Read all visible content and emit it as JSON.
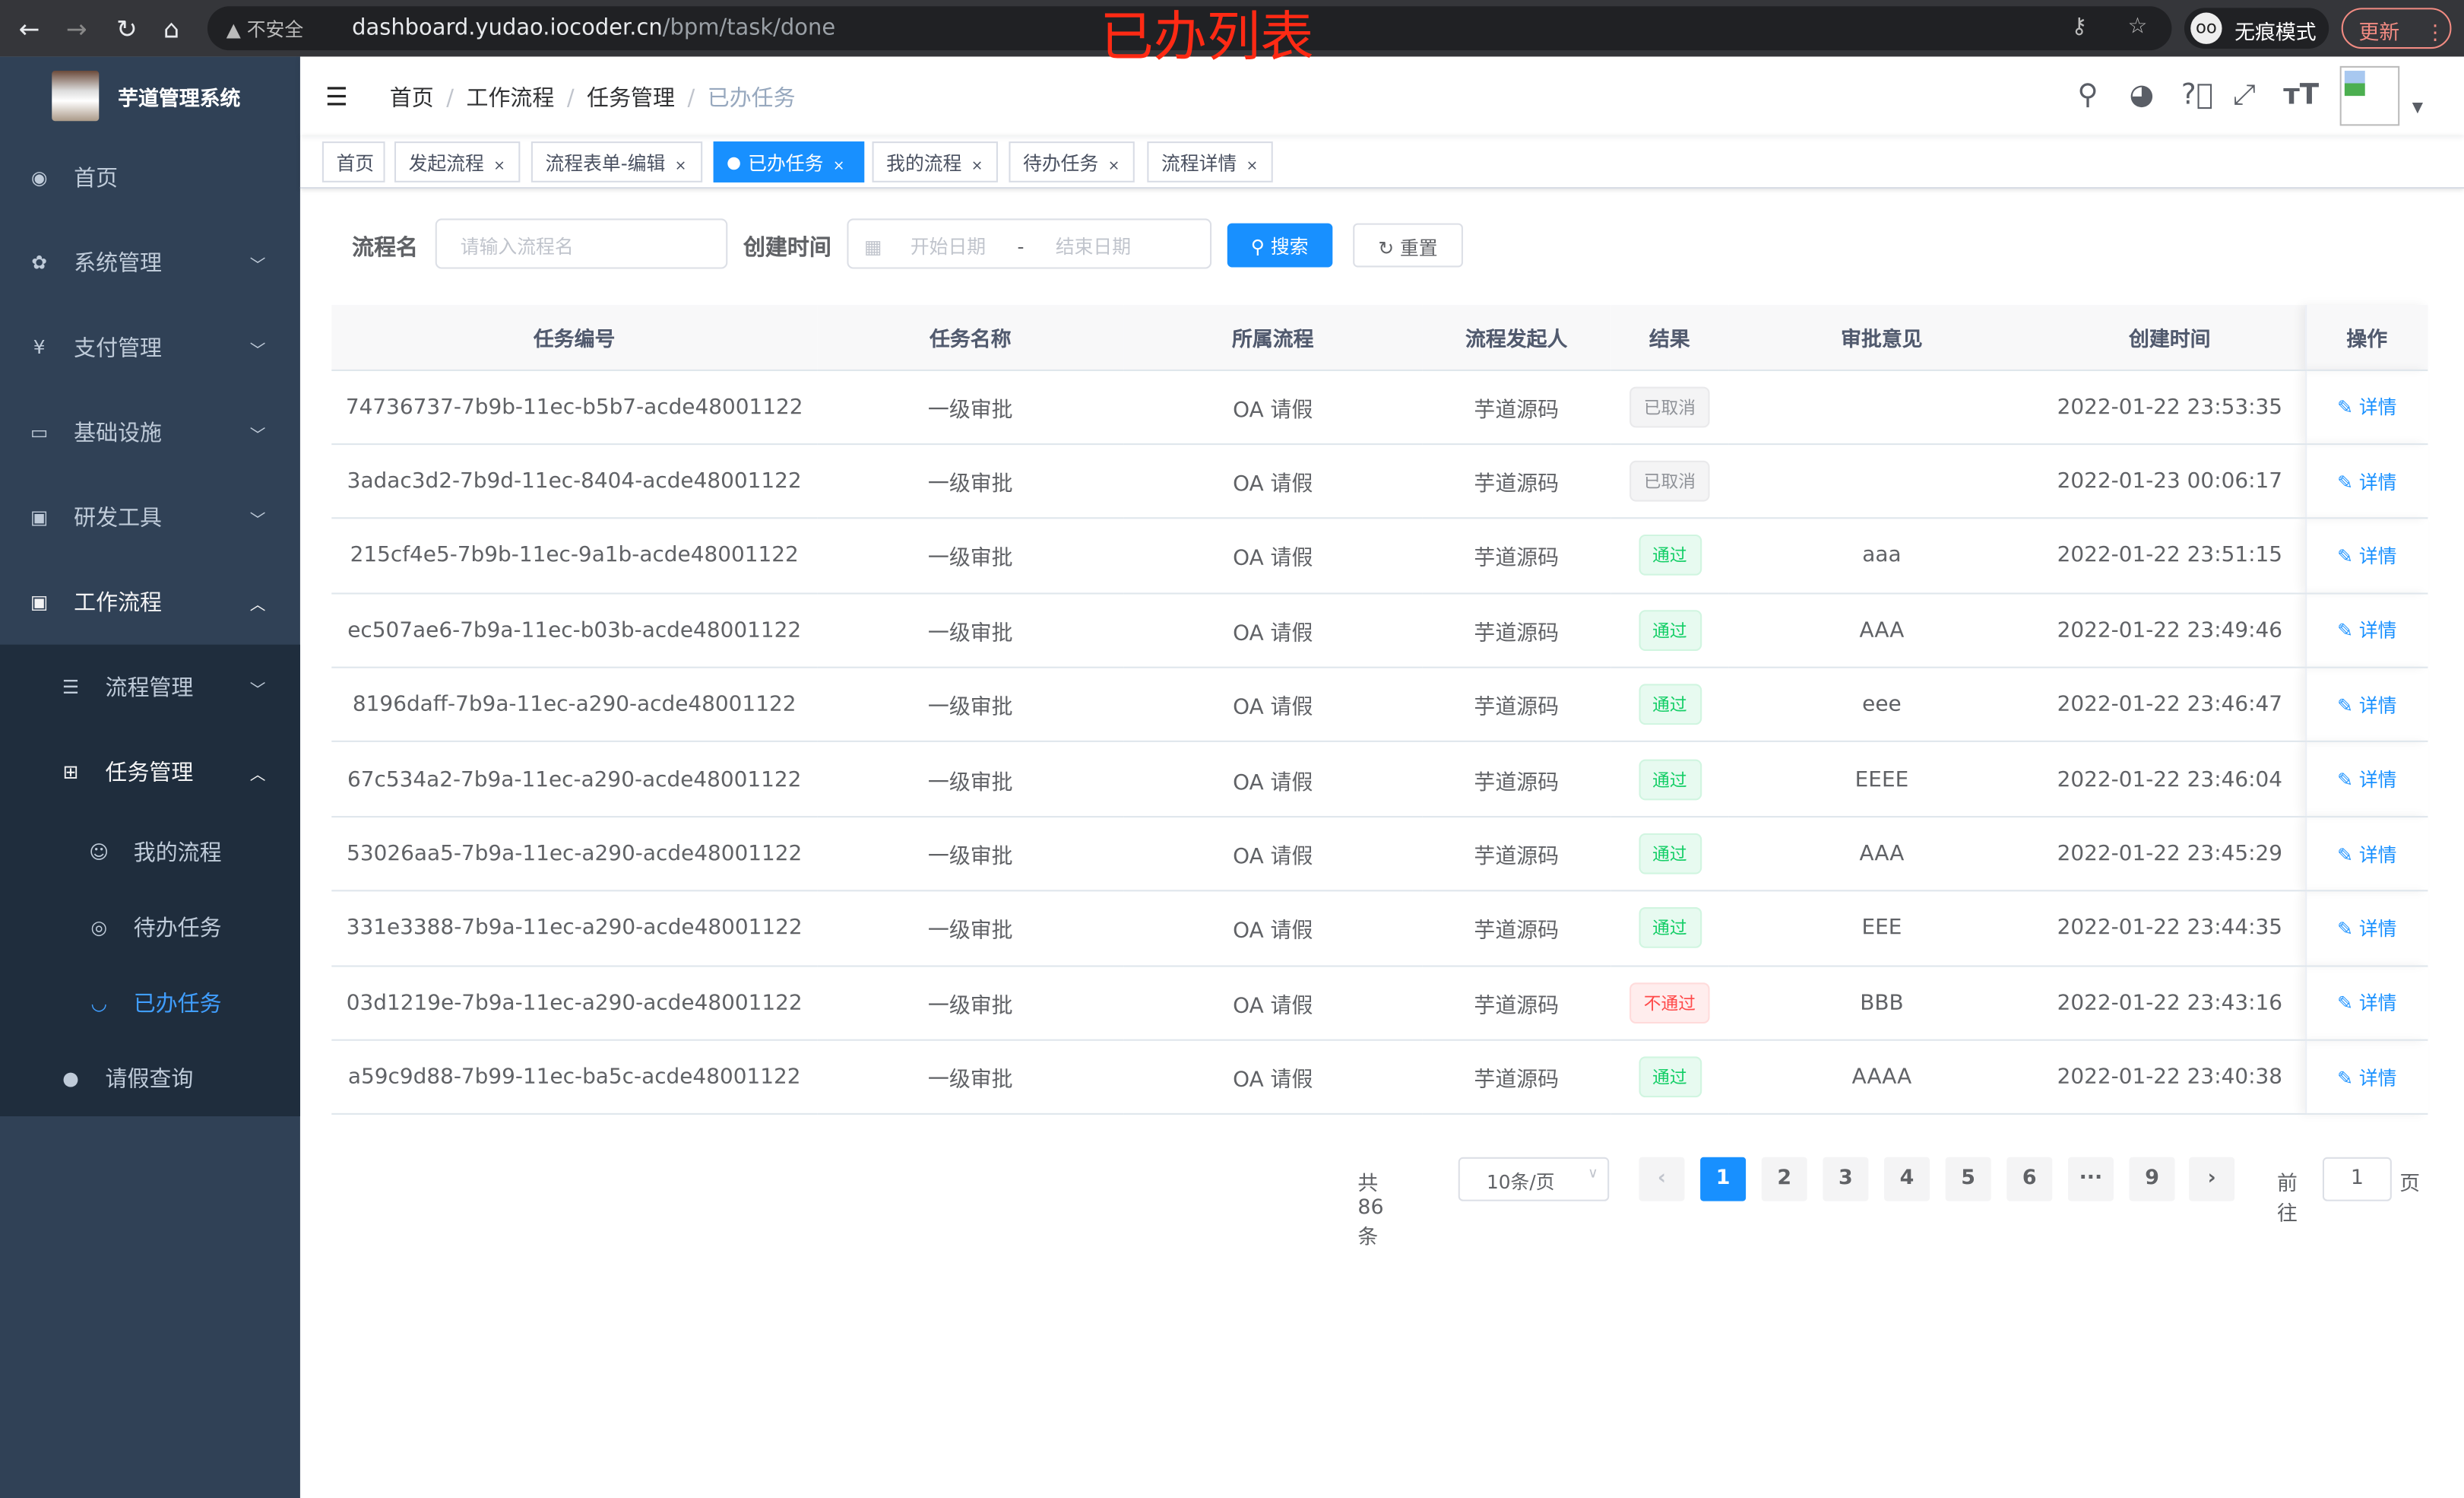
{
  "browser": {
    "security": "不安全",
    "url_host": "dashboard.yudao.iocoder.cn",
    "url_path": "/bpm/task/done",
    "incognito": "无痕模式",
    "update": "更新"
  },
  "overlay_title": "已办列表",
  "sidebar": {
    "title": "芋道管理系统",
    "items": [
      {
        "label": "首页",
        "icon": "dashboard-icon"
      },
      {
        "label": "系统管理",
        "icon": "gear-icon"
      },
      {
        "label": "支付管理",
        "icon": "yen-icon"
      },
      {
        "label": "基础设施",
        "icon": "monitor-icon"
      },
      {
        "label": "研发工具",
        "icon": "toolbox-icon"
      },
      {
        "label": "工作流程",
        "icon": "toolbox-icon"
      }
    ],
    "sub": [
      {
        "label": "流程管理"
      },
      {
        "label": "任务管理"
      }
    ],
    "sub2": [
      {
        "label": "我的流程"
      },
      {
        "label": "待办任务"
      },
      {
        "label": "已办任务"
      }
    ],
    "leave": "请假查询"
  },
  "breadcrumb": [
    "首页",
    "工作流程",
    "任务管理",
    "已办任务"
  ],
  "tags": [
    "首页",
    "发起流程",
    "流程表单-编辑",
    "已办任务",
    "我的流程",
    "待办任务",
    "流程详情"
  ],
  "search": {
    "name_label": "流程名",
    "name_placeholder": "请输入流程名",
    "time_label": "创建时间",
    "start_placeholder": "开始日期",
    "sep": "-",
    "end_placeholder": "结束日期",
    "search": "搜索",
    "reset": "重置"
  },
  "table": {
    "headers": [
      "任务编号",
      "任务名称",
      "所属流程",
      "流程发起人",
      "结果",
      "审批意见",
      "创建时间",
      "操作"
    ],
    "rows": [
      [
        "74736737-7b9b-11ec-b5b7-acde48001122",
        "一级审批",
        "OA 请假",
        "芋道源码",
        "已取消",
        "",
        "2022-01-22 23:53:35",
        "详情"
      ],
      [
        "3adac3d2-7b9d-11ec-8404-acde48001122",
        "一级审批",
        "OA 请假",
        "芋道源码",
        "已取消",
        "",
        "2022-01-23 00:06:17",
        "详情"
      ],
      [
        "215cf4e5-7b9b-11ec-9a1b-acde48001122",
        "一级审批",
        "OA 请假",
        "芋道源码",
        "通过",
        "aaa",
        "2022-01-22 23:51:15",
        "详情"
      ],
      [
        "ec507ae6-7b9a-11ec-b03b-acde48001122",
        "一级审批",
        "OA 请假",
        "芋道源码",
        "通过",
        "AAA",
        "2022-01-22 23:49:46",
        "详情"
      ],
      [
        "8196daff-7b9a-11ec-a290-acde48001122",
        "一级审批",
        "OA 请假",
        "芋道源码",
        "通过",
        "eee",
        "2022-01-22 23:46:47",
        "详情"
      ],
      [
        "67c534a2-7b9a-11ec-a290-acde48001122",
        "一级审批",
        "OA 请假",
        "芋道源码",
        "通过",
        "EEEE",
        "2022-01-22 23:46:04",
        "详情"
      ],
      [
        "53026aa5-7b9a-11ec-a290-acde48001122",
        "一级审批",
        "OA 请假",
        "芋道源码",
        "通过",
        "AAA",
        "2022-01-22 23:45:29",
        "详情"
      ],
      [
        "331e3388-7b9a-11ec-a290-acde48001122",
        "一级审批",
        "OA 请假",
        "芋道源码",
        "通过",
        "EEE",
        "2022-01-22 23:44:35",
        "详情"
      ],
      [
        "03d1219e-7b9a-11ec-a290-acde48001122",
        "一级审批",
        "OA 请假",
        "芋道源码",
        "不通过",
        "BBB",
        "2022-01-22 23:43:16",
        "详情"
      ],
      [
        "a59c9d88-7b99-11ec-ba5c-acde48001122",
        "一级审批",
        "OA 请假",
        "芋道源码",
        "通过",
        "AAAA",
        "2022-01-22 23:40:38",
        "详情"
      ]
    ]
  },
  "pagination": {
    "total": "共 86 条",
    "page_size": "10条/页",
    "pages": [
      "1",
      "2",
      "3",
      "4",
      "5",
      "6",
      "···",
      "9"
    ],
    "current": "1",
    "goto_label": "前往",
    "goto_value": "1",
    "page_suffix": "页"
  }
}
